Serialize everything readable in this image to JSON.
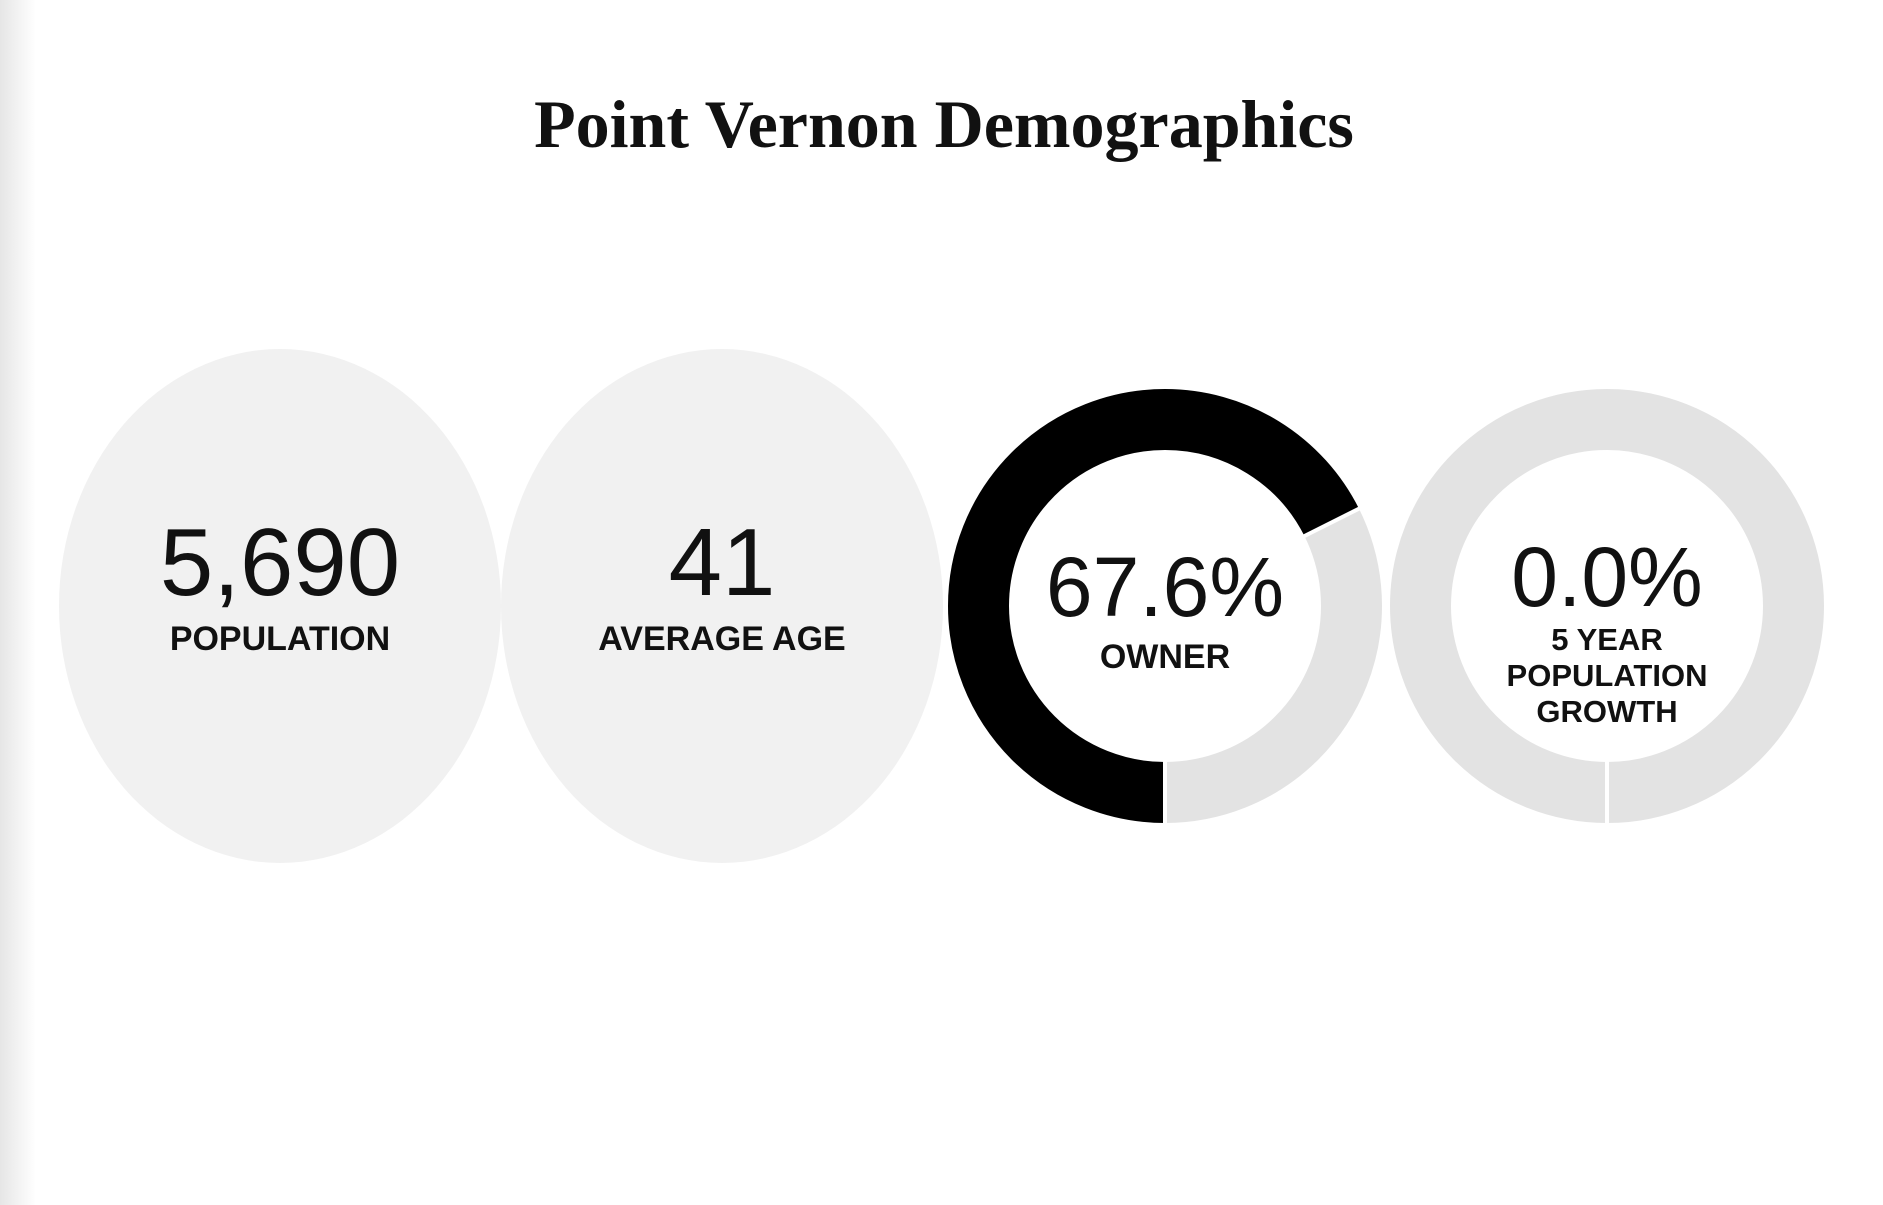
{
  "header": {
    "title": "Point Vernon Demographics"
  },
  "stats": [
    {
      "value": "5,690",
      "label": "POPULATION"
    },
    {
      "value": "41",
      "label": "AVERAGE AGE"
    },
    {
      "value": 67.6,
      "value_label": "67.6%",
      "label": "OWNER"
    },
    {
      "value": 0.0,
      "value_label": "0.0%",
      "label_lines": [
        "5 YEAR",
        "POPULATION",
        "GROWTH"
      ]
    }
  ]
}
